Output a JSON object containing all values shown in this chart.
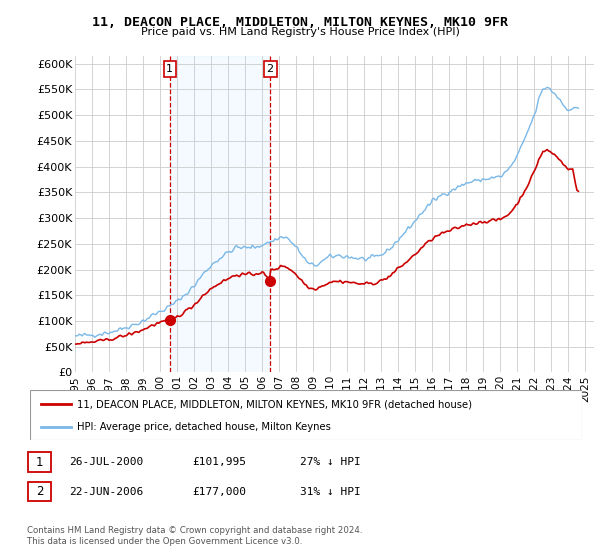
{
  "title": "11, DEACON PLACE, MIDDLETON, MILTON KEYNES, MK10 9FR",
  "subtitle": "Price paid vs. HM Land Registry's House Price Index (HPI)",
  "ylabel_ticks": [
    "£0",
    "£50K",
    "£100K",
    "£150K",
    "£200K",
    "£250K",
    "£300K",
    "£350K",
    "£400K",
    "£450K",
    "£500K",
    "£550K",
    "£600K"
  ],
  "ytick_values": [
    0,
    50000,
    100000,
    150000,
    200000,
    250000,
    300000,
    350000,
    400000,
    450000,
    500000,
    550000,
    600000
  ],
  "ylim": [
    0,
    615000
  ],
  "xlim_start": 1995.0,
  "xlim_end": 2025.5,
  "purchase1_date": 2000.57,
  "purchase1_price": 101995,
  "purchase2_date": 2006.47,
  "purchase2_price": 177000,
  "hpi_color": "#7ab8e8",
  "hpi_fill_color": "#ddeeff",
  "price_color": "#cc0000",
  "grid_color": "#cccccc",
  "bg_color": "#ffffff",
  "legend_text_red": "11, DEACON PLACE, MIDDLETON, MILTON KEYNES, MK10 9FR (detached house)",
  "legend_text_blue": "HPI: Average price, detached house, Milton Keynes",
  "table_row1": [
    "1",
    "26-JUL-2000",
    "£101,995",
    "27% ↓ HPI"
  ],
  "table_row2": [
    "2",
    "22-JUN-2006",
    "£177,000",
    "31% ↓ HPI"
  ],
  "footnote": "Contains HM Land Registry data © Crown copyright and database right 2024.\nThis data is licensed under the Open Government Licence v3.0."
}
